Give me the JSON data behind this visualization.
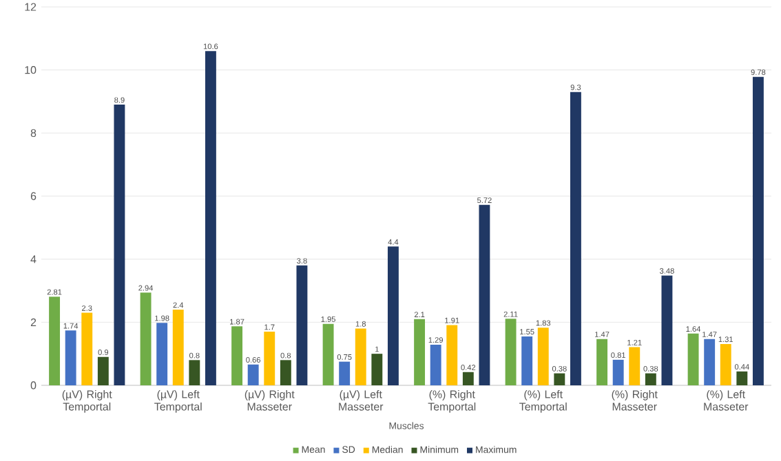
{
  "chart_data": {
    "type": "bar",
    "xlabel": "Muscles",
    "categories": [
      "(µV) Right Temportal",
      "(µV) Left Temportal",
      "(µV) Right Masseter",
      "(µV) Left Masseter",
      "(%) Right Temportal",
      "(%) Left Temportal",
      "(%) Right Masseter",
      "(%) Left Masseter"
    ],
    "series": [
      {
        "name": "Mean",
        "color": "#70ad47",
        "values": [
          2.81,
          2.94,
          1.87,
          1.95,
          2.1,
          2.11,
          1.47,
          1.64
        ]
      },
      {
        "name": "SD",
        "color": "#4472c4",
        "values": [
          1.74,
          1.98,
          0.66,
          0.75,
          1.29,
          1.55,
          0.81,
          1.47
        ]
      },
      {
        "name": "Median",
        "color": "#ffc000",
        "values": [
          2.3,
          2.4,
          1.7,
          1.8,
          1.91,
          1.83,
          1.21,
          1.31
        ]
      },
      {
        "name": "Minimum",
        "color": "#375623",
        "values": [
          0.9,
          0.8,
          0.8,
          1,
          0.42,
          0.38,
          0.38,
          0.44
        ]
      },
      {
        "name": "Maximum",
        "color": "#203864",
        "values": [
          8.9,
          10.6,
          3.8,
          4.4,
          5.72,
          9.3,
          3.48,
          9.78
        ]
      }
    ],
    "ylim": [
      0,
      12
    ],
    "yticks": [
      0,
      2,
      4,
      6,
      8,
      10,
      12
    ],
    "grid": "y",
    "legend": "bottom",
    "data_labels": true
  }
}
